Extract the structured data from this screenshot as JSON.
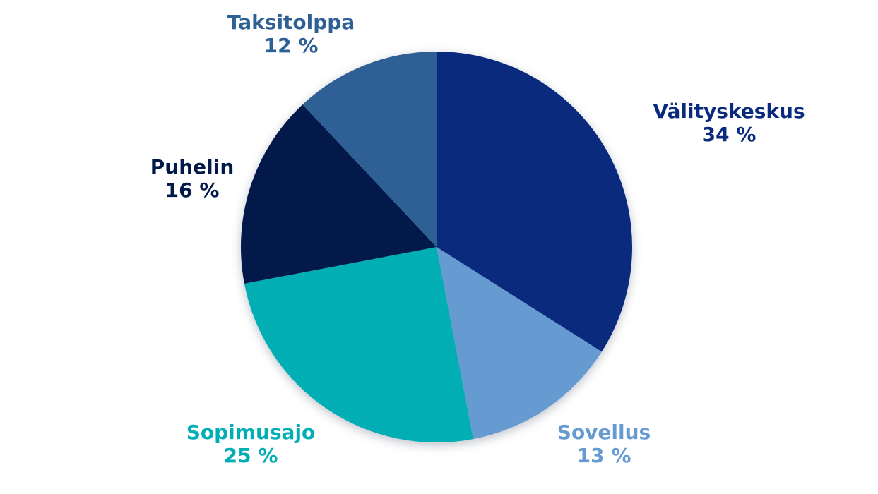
{
  "chart_data": {
    "type": "pie",
    "title": "",
    "categories": [
      "Välityskeskus",
      "Sovellus",
      "Sopimusajo",
      "Puhelin",
      "Taksitolppa"
    ],
    "values": [
      34,
      13,
      25,
      16,
      12
    ],
    "value_labels": [
      "34 %",
      "13 %",
      "25 %",
      "16 %",
      "12 %"
    ],
    "colors": [
      "#0A2B7D",
      "#669BD2",
      "#00AEB4",
      "#02194A",
      "#2E5F95"
    ],
    "slice_ids": [
      "valityskeskus",
      "sovellus",
      "sopimusajo",
      "puhelin",
      "taksitolppa"
    ],
    "unit": "%",
    "start_angle_deg": 0,
    "direction": "clockwise",
    "legend_position": "none",
    "labels_outside": true,
    "label_color_matches_slice": true,
    "background_color": "#ffffff"
  }
}
